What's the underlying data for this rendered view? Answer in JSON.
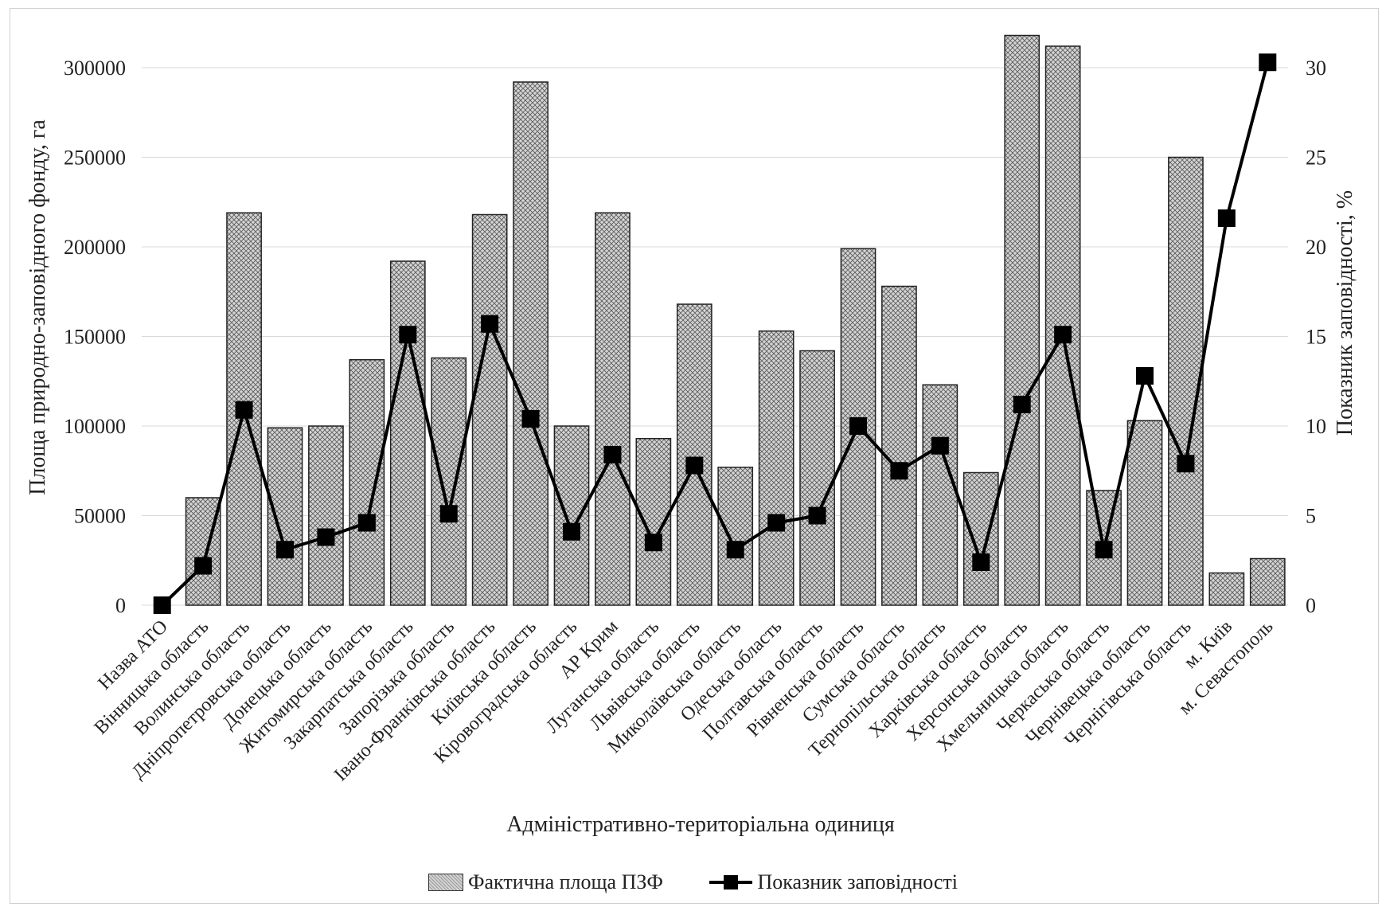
{
  "chart_data": {
    "type": "bar",
    "categories": [
      "Назва АТО",
      "Вінницька область",
      "Волинська область",
      "Дніпропетровська область",
      "Донецька область",
      "Житомирська область",
      "Закарпатська область",
      "Запорізька область",
      "Івано-Франківська область",
      "Київська область",
      "Кіровоградська область",
      "АР Крим",
      "Луганська область",
      "Львівська область",
      "Миколаївська область",
      "Одеська область",
      "Полтавська область",
      "Рівненська область",
      "Сумська область",
      "Тернопільська область",
      "Харківська область",
      "Херсонська область",
      "Хмельницька область",
      "Черкаська область",
      "Чернівецька область",
      "Чернігівська область",
      "м. Київ",
      "м. Севастополь"
    ],
    "series": [
      {
        "name": "Фактична площа ПЗФ",
        "kind": "bar",
        "axis": "left",
        "values": [
          0,
          60000,
          219000,
          99000,
          100000,
          137000,
          192000,
          138000,
          218000,
          292000,
          100000,
          219000,
          93000,
          168000,
          77000,
          153000,
          142000,
          199000,
          178000,
          123000,
          74000,
          318000,
          312000,
          64000,
          103000,
          250000,
          18000,
          26000
        ]
      },
      {
        "name": "Показник заповідності",
        "kind": "line",
        "axis": "right",
        "values": [
          0,
          2.2,
          10.9,
          3.1,
          3.8,
          4.6,
          15.1,
          5.1,
          15.7,
          10.4,
          4.1,
          8.4,
          3.5,
          7.8,
          3.1,
          4.6,
          5.0,
          10.0,
          7.5,
          8.9,
          2.4,
          11.2,
          15.1,
          3.1,
          12.8,
          7.9,
          21.6,
          30.3
        ]
      }
    ],
    "title": "",
    "xlabel": "Адміністративно-територіальна одиниця",
    "ylabel": "Площа природно-заповідного фонду, га",
    "y2label": "Показник заповідності, %",
    "ylim": [
      0,
      320000
    ],
    "y2lim": [
      0,
      32
    ],
    "yticks": [
      0,
      50000,
      100000,
      150000,
      200000,
      250000,
      300000
    ],
    "y2ticks": [
      0,
      5,
      10,
      15,
      20,
      25,
      30
    ],
    "grid": true,
    "legend_position": "bottom",
    "colors": {
      "bar_fill": "#cfcfcf",
      "bar_hatch": "#555555",
      "bar_stroke": "#222222",
      "line": "#000000",
      "marker": "#000000",
      "grid": "#d9d9d9"
    }
  }
}
